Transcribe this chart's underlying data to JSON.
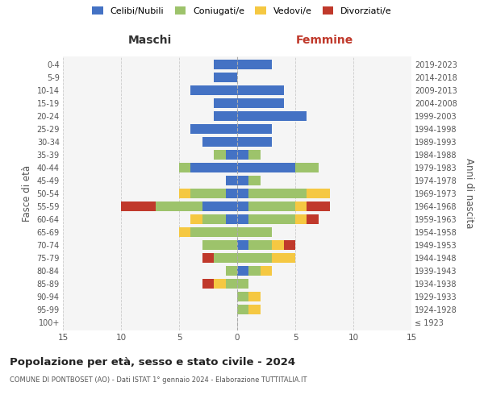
{
  "age_groups": [
    "100+",
    "95-99",
    "90-94",
    "85-89",
    "80-84",
    "75-79",
    "70-74",
    "65-69",
    "60-64",
    "55-59",
    "50-54",
    "45-49",
    "40-44",
    "35-39",
    "30-34",
    "25-29",
    "20-24",
    "15-19",
    "10-14",
    "5-9",
    "0-4"
  ],
  "birth_years": [
    "≤ 1923",
    "1924-1928",
    "1929-1933",
    "1934-1938",
    "1939-1943",
    "1944-1948",
    "1949-1953",
    "1954-1958",
    "1959-1963",
    "1964-1968",
    "1969-1973",
    "1974-1978",
    "1979-1983",
    "1984-1988",
    "1989-1993",
    "1994-1998",
    "1999-2003",
    "2004-2008",
    "2009-2013",
    "2014-2018",
    "2019-2023"
  ],
  "colors": {
    "celibi": "#4472C4",
    "coniugati": "#9DC36B",
    "vedovi": "#F5C842",
    "divorziati": "#C0392B"
  },
  "males": {
    "celibi": [
      0,
      0,
      0,
      0,
      0,
      0,
      0,
      0,
      1,
      3,
      1,
      1,
      4,
      1,
      3,
      4,
      2,
      2,
      4,
      2,
      2
    ],
    "coniugati": [
      0,
      0,
      0,
      1,
      1,
      2,
      3,
      4,
      2,
      4,
      3,
      0,
      1,
      1,
      0,
      0,
      0,
      0,
      0,
      0,
      0
    ],
    "vedovi": [
      0,
      0,
      0,
      1,
      0,
      0,
      0,
      1,
      1,
      0,
      1,
      0,
      0,
      0,
      0,
      0,
      0,
      0,
      0,
      0,
      0
    ],
    "divorziati": [
      0,
      0,
      0,
      1,
      0,
      1,
      0,
      0,
      0,
      3,
      0,
      0,
      0,
      0,
      0,
      0,
      0,
      0,
      0,
      0,
      0
    ]
  },
  "females": {
    "celibi": [
      0,
      0,
      0,
      0,
      1,
      0,
      1,
      0,
      1,
      1,
      1,
      1,
      5,
      1,
      3,
      3,
      6,
      4,
      4,
      0,
      3
    ],
    "coniugati": [
      0,
      1,
      1,
      1,
      1,
      3,
      2,
      3,
      4,
      4,
      5,
      1,
      2,
      1,
      0,
      0,
      0,
      0,
      0,
      0,
      0
    ],
    "vedovi": [
      0,
      1,
      1,
      0,
      1,
      2,
      1,
      0,
      1,
      1,
      2,
      0,
      0,
      0,
      0,
      0,
      0,
      0,
      0,
      0,
      0
    ],
    "divorziati": [
      0,
      0,
      0,
      0,
      0,
      0,
      1,
      0,
      1,
      2,
      0,
      0,
      0,
      0,
      0,
      0,
      0,
      0,
      0,
      0,
      0
    ]
  },
  "xlim": 15,
  "title": "Popolazione per età, sesso e stato civile - 2024",
  "subtitle": "COMUNE DI PONTBOSET (AO) - Dati ISTAT 1° gennaio 2024 - Elaborazione TUTTITALIA.IT",
  "ylabel_left": "Fasce di età",
  "ylabel_right": "Anni di nascita",
  "xlabel_maschi": "Maschi",
  "xlabel_femmine": "Femmine",
  "legend_labels": [
    "Celibi/Nubili",
    "Coniugati/e",
    "Vedovi/e",
    "Divorziati/e"
  ],
  "bg_color": "#ffffff",
  "plot_bg_color": "#f5f5f5",
  "grid_color": "#cccccc",
  "maschi_color": "#333333",
  "femmine_color": "#C0392B",
  "text_color": "#555555",
  "title_color": "#222222"
}
